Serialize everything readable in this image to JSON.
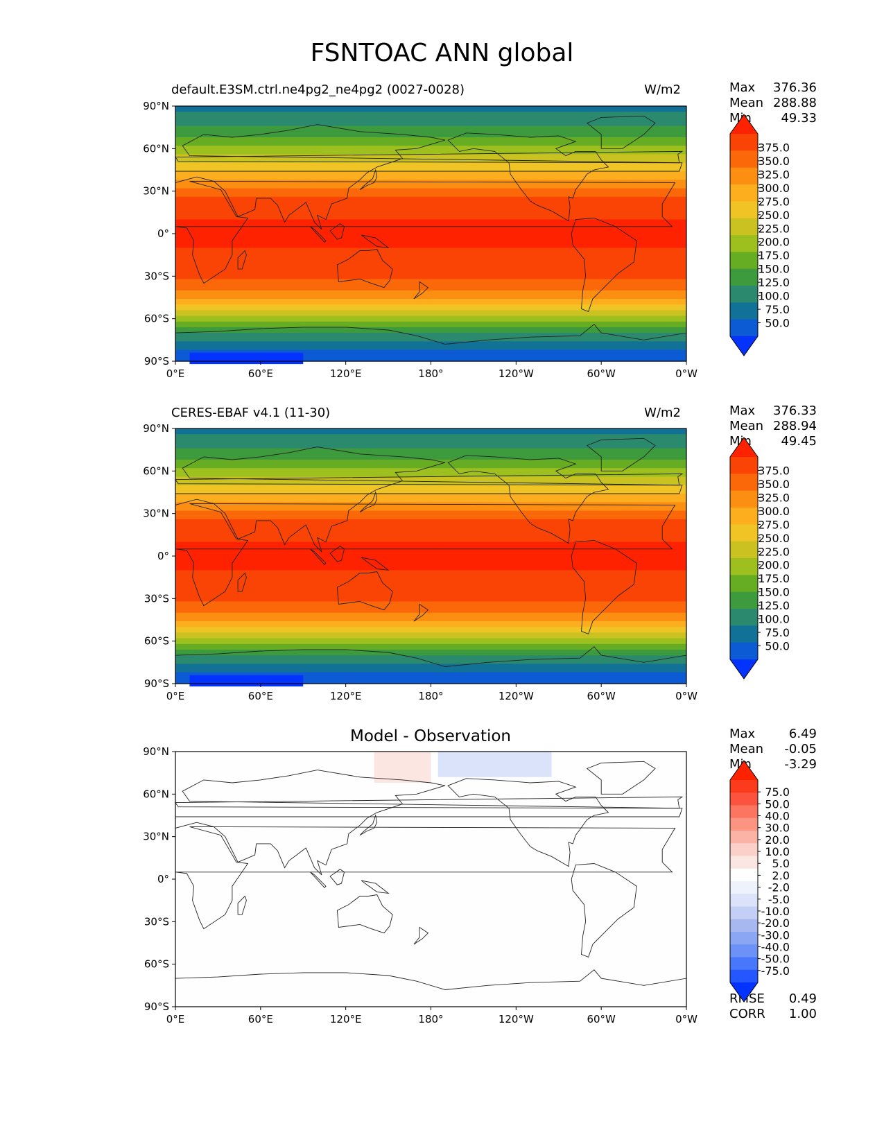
{
  "title": "FSNTOAC ANN global",
  "panels": [
    {
      "id": "model",
      "left_title": "default.E3SM.ctrl.ne4pg2_ne4pg2 (0027-0028)",
      "units": "W/m2",
      "center_title": "",
      "stats": [
        {
          "label": "Max",
          "value": "376.36"
        },
        {
          "label": "Mean",
          "value": "288.88"
        },
        {
          "label": "Min",
          "value": "49.33"
        }
      ]
    },
    {
      "id": "obs",
      "left_title": "CERES-EBAF v4.1 (11-30)",
      "units": "W/m2",
      "center_title": "",
      "stats": [
        {
          "label": "Max",
          "value": "376.33"
        },
        {
          "label": "Mean",
          "value": "288.94"
        },
        {
          "label": "Min",
          "value": "49.45"
        }
      ]
    },
    {
      "id": "diff",
      "left_title": "",
      "units": "",
      "center_title": "Model - Observation",
      "stats": [
        {
          "label": "Max",
          "value": "6.49"
        },
        {
          "label": "Mean",
          "value": "-0.05"
        },
        {
          "label": "Min",
          "value": "-3.29"
        }
      ],
      "metrics": [
        {
          "label": "RMSE",
          "value": "0.49"
        },
        {
          "label": "CORR",
          "value": "1.00"
        }
      ]
    }
  ],
  "colors": {
    "field": [
      "#0433ff",
      "#0c5bd4",
      "#127196",
      "#2b8a6e",
      "#3d9a3d",
      "#67ad23",
      "#9ec01f",
      "#c9c221",
      "#f1c425",
      "#fcae1e",
      "#fc8e12",
      "#fb680a",
      "#fa4406",
      "#ff2200"
    ],
    "diff": [
      "#0433ff",
      "#2457ff",
      "#4977fb",
      "#6c91f7",
      "#8ba6f2",
      "#a7b8f0",
      "#c3cff5",
      "#dbe3fa",
      "#eef2fd",
      "#fefefe",
      "#fbe6e2",
      "#fbd0c8",
      "#fbb3a6",
      "#fb9480",
      "#fb7560",
      "#fb533d",
      "#fc3a1c",
      "#ff2200"
    ]
  },
  "chart_data": [
    {
      "type": "heatmap",
      "title": "default.E3SM.ctrl.ne4pg2_ne4pg2 (0027-0028)",
      "units": "W/m2",
      "x_ticks": [
        "0°E",
        "60°E",
        "120°E",
        "180°",
        "120°W",
        "60°W",
        "0°W"
      ],
      "y_ticks": [
        "90°N",
        "60°N",
        "30°N",
        "0°",
        "30°S",
        "60°S",
        "90°S"
      ],
      "xlim": [
        0,
        360
      ],
      "ylim": [
        -90,
        90
      ],
      "colorbar_levels": [
        "375.0",
        "350.0",
        "325.0",
        "300.0",
        "275.0",
        "250.0",
        "225.0",
        "200.0",
        "175.0",
        "150.0",
        "125.0",
        "100.0",
        "75.0",
        "50.0"
      ],
      "zonal_profile": {
        "lat": [
          -90,
          -80,
          -70,
          -60,
          -50,
          -40,
          -30,
          -20,
          -10,
          0,
          10,
          20,
          30,
          40,
          50,
          60,
          70,
          80,
          90
        ],
        "value": [
          55,
          80,
          120,
          190,
          250,
          300,
          330,
          345,
          350,
          350,
          350,
          340,
          310,
          270,
          220,
          180,
          140,
          110,
          90
        ]
      }
    },
    {
      "type": "heatmap",
      "title": "CERES-EBAF v4.1 (11-30)",
      "units": "W/m2",
      "x_ticks": [
        "0°E",
        "60°E",
        "120°E",
        "180°",
        "120°W",
        "60°W",
        "0°W"
      ],
      "y_ticks": [
        "90°N",
        "60°N",
        "30°N",
        "0°",
        "30°S",
        "60°S",
        "90°S"
      ],
      "xlim": [
        0,
        360
      ],
      "ylim": [
        -90,
        90
      ],
      "colorbar_levels": [
        "375.0",
        "350.0",
        "325.0",
        "300.0",
        "275.0",
        "250.0",
        "225.0",
        "200.0",
        "175.0",
        "150.0",
        "125.0",
        "100.0",
        "75.0",
        "50.0"
      ],
      "zonal_profile": {
        "lat": [
          -90,
          -80,
          -70,
          -60,
          -50,
          -40,
          -30,
          -20,
          -10,
          0,
          10,
          20,
          30,
          40,
          50,
          60,
          70,
          80,
          90
        ],
        "value": [
          55,
          80,
          120,
          190,
          250,
          300,
          330,
          345,
          350,
          350,
          350,
          340,
          310,
          270,
          220,
          180,
          140,
          110,
          90
        ]
      }
    },
    {
      "type": "heatmap",
      "title": "Model - Observation",
      "x_ticks": [
        "0°E",
        "60°E",
        "120°E",
        "180°",
        "120°W",
        "60°W",
        "0°W"
      ],
      "y_ticks": [
        "90°N",
        "60°N",
        "30°N",
        "0°",
        "30°S",
        "60°S",
        "90°S"
      ],
      "xlim": [
        0,
        360
      ],
      "ylim": [
        -90,
        90
      ],
      "colorbar_levels": [
        "75.0",
        "50.0",
        "40.0",
        "30.0",
        "20.0",
        "10.0",
        "5.0",
        "2.0",
        "-2.0",
        "-5.0",
        "-10.0",
        "-20.0",
        "-30.0",
        "-40.0",
        "-50.0",
        "-75.0"
      ]
    }
  ]
}
